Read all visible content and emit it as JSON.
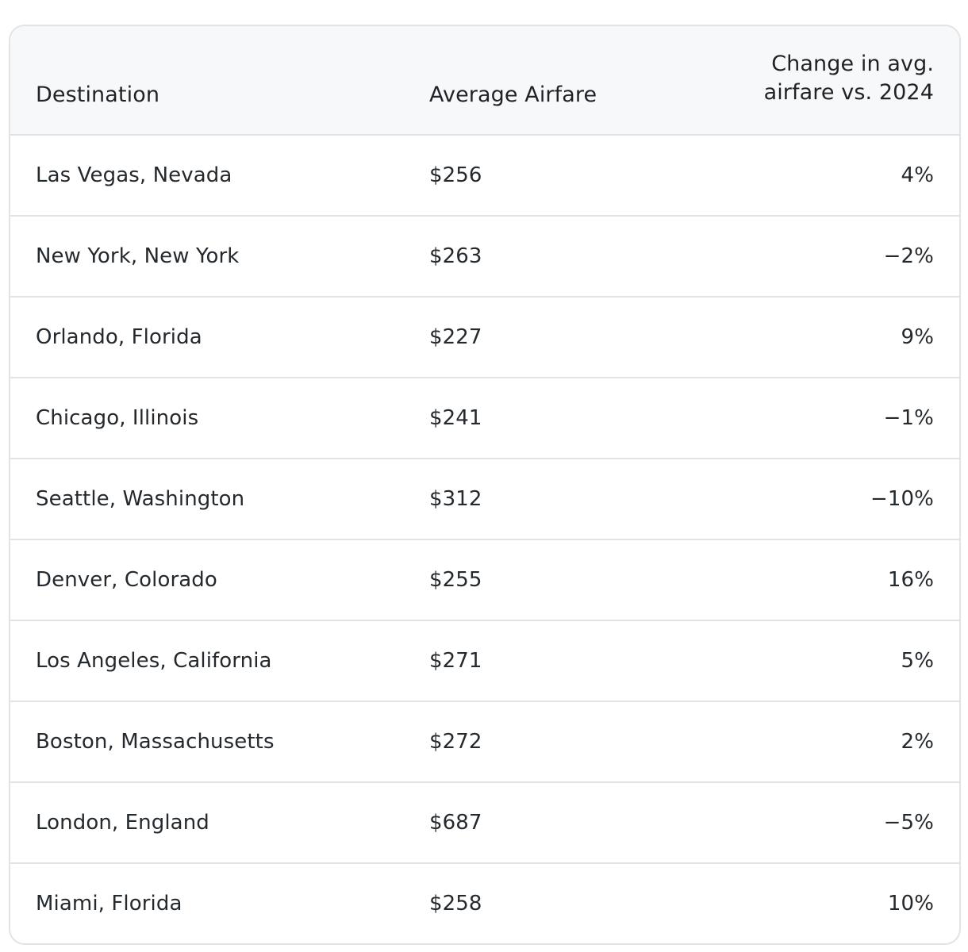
{
  "table": {
    "headers": {
      "destination": "Destination",
      "average_airfare": "Average Airfare",
      "change": "Change in avg. airfare vs. 2024"
    },
    "rows": [
      {
        "destination": "Las Vegas, Nevada",
        "average_airfare": "$256",
        "change": "4%"
      },
      {
        "destination": "New York, New York",
        "average_airfare": "$263",
        "change": "−2%"
      },
      {
        "destination": "Orlando, Florida",
        "average_airfare": "$227",
        "change": "9%"
      },
      {
        "destination": "Chicago, Illinois",
        "average_airfare": "$241",
        "change": "−1%"
      },
      {
        "destination": "Seattle, Washington",
        "average_airfare": "$312",
        "change": "−10%"
      },
      {
        "destination": "Denver, Colorado",
        "average_airfare": "$255",
        "change": "16%"
      },
      {
        "destination": "Los Angeles, California",
        "average_airfare": "$271",
        "change": "5%"
      },
      {
        "destination": "Boston, Massachusetts",
        "average_airfare": "$272",
        "change": "2%"
      },
      {
        "destination": "London, England",
        "average_airfare": "$687",
        "change": "−5%"
      },
      {
        "destination": "Miami, Florida",
        "average_airfare": "$258",
        "change": "10%"
      }
    ]
  },
  "colors": {
    "header_background": "#f7f8f9",
    "border": "#e1e3e6",
    "text": "#1f2328"
  }
}
